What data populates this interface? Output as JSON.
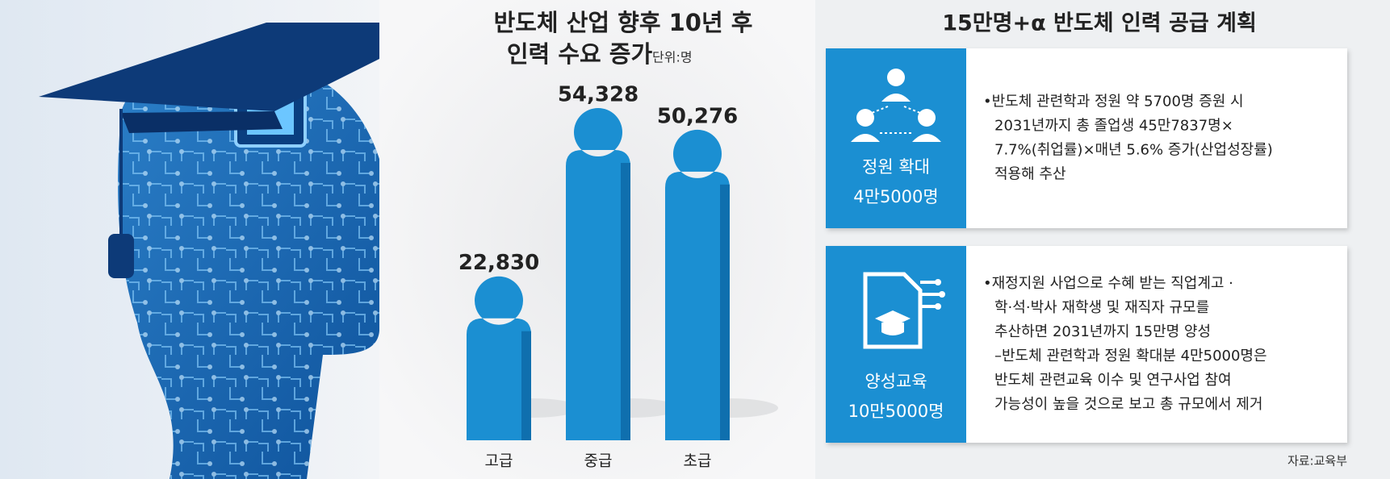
{
  "chart_data": {
    "type": "bar",
    "title": [
      "반도체 산업 향후 10년 후",
      "인력 수요 증가"
    ],
    "unit": "단위:명",
    "categories": [
      "고급",
      "중급",
      "초급"
    ],
    "values": [
      22830,
      54328,
      50276
    ],
    "value_labels": [
      "22,830",
      "54,328",
      "50,276"
    ],
    "color": "#1b8fd2"
  },
  "supply_plan": {
    "title": "15만명+α 반도체 인력 공급 계획",
    "items": [
      {
        "label": "정원 확대",
        "amount": "4만5000명",
        "lines": [
          "•반도체 관련학과 정원 약 5700명 증원 시",
          "2031년까지 총 졸업생 45만7837명×",
          "7.7%(취업률)×매년 5.6% 증가(산업성장률)",
          "적용해 추산"
        ]
      },
      {
        "label": "양성교육",
        "amount": "10만5000명",
        "lines": [
          "•재정지원 사업으로 수혜 받는 직업계고 ·",
          "학·석·박사 재학생 및 재직자 규모를",
          "추산하면 2031년까지 15만명 양성",
          "–반도체 관련학과 정원 확대분 4만5000명은",
          "반도체 관련교육 이수 및 연구사업 참여",
          "가능성이 높을 것으로 보고 총 규모에서 제거"
        ]
      }
    ],
    "source": "자료:교육부"
  }
}
